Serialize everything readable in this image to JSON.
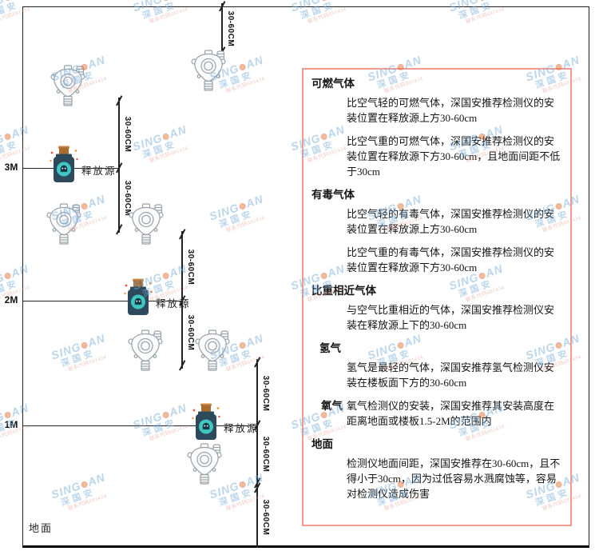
{
  "diagram": {
    "dimension_label": "30-60CM",
    "source_label": "释放源",
    "ground_label": "地面",
    "levels": [
      {
        "label": "3M"
      },
      {
        "label": "2M"
      },
      {
        "label": "1M"
      }
    ],
    "icons": {
      "detector": "gas-detector-icon",
      "source": "release-source-bottle-icon"
    }
  },
  "panel": {
    "sections": [
      {
        "heading": "可燃气体",
        "paragraphs": [
          "比空气轻的可燃气体，深国安推荐检测仪的安装位置在释放源上方30-60cm",
          "比空气重的可燃气体，深国安推荐检测仪的安装位置在释放源下方30-60cm，且地面间距不低于30cm"
        ]
      },
      {
        "heading": "有毒气体",
        "paragraphs": [
          "比空气轻的有毒气体，深国安推荐检测仪的安装位置在释放源上方30-60cm",
          "比空气重的有毒气体，深国安推荐检测仪的安装位置在释放源下方30-60cm"
        ]
      },
      {
        "heading": "比重相近气体",
        "paragraphs": [
          "与空气比重相近的气体，深国安推荐检测仪安装在释放源上下的30-60cm"
        ]
      },
      {
        "heading": "氢气",
        "paragraphs": [
          "氢气是最轻的气体，深国安推荐氢气检测仪安装在楼板面下方的30-60cm"
        ]
      },
      {
        "heading": "氧气",
        "paragraphs": [
          "氧气检测仪的安装，深国安推荐其安装高度在距离地面或楼板1.5-2M的范围内"
        ]
      },
      {
        "heading": "地面",
        "paragraphs": [
          "检测仪地面间距，深国安推荐在30-60cm，且不得小于30cm，因为过低容易水溅腐蚀等，容易对检测仪造成伤害"
        ]
      }
    ]
  },
  "watermark": {
    "brand_prefix": "SING",
    "brand_suffix": "AN",
    "cn": "深国安",
    "code": "联系代码681434"
  },
  "colors": {
    "panel_border": "#f29a90",
    "line": "#222222",
    "watermark_blue": "#79add9",
    "watermark_orange": "#e07b2a",
    "watermark_red": "#df8e80",
    "bottle_body": "#2d4a5c",
    "bottle_cork": "#a96a2d",
    "bottle_disc": "#3fc8c2"
  }
}
